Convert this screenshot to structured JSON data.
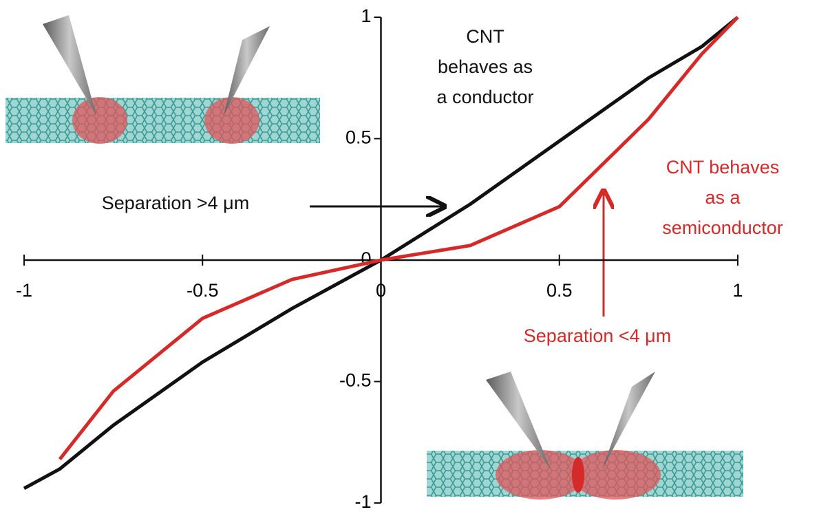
{
  "chart_data": {
    "type": "line",
    "x": [
      -1,
      -0.9,
      -0.75,
      -0.5,
      -0.25,
      0,
      0.25,
      0.5,
      0.75,
      0.9,
      1
    ],
    "series": [
      {
        "color": "#111111",
        "values": [
          -0.94,
          -0.86,
          -0.68,
          -0.42,
          -0.2,
          0,
          0.23,
          0.49,
          0.75,
          0.88,
          1
        ]
      },
      {
        "color": "#d42a2a",
        "values": [
          null,
          -0.82,
          -0.54,
          -0.24,
          -0.08,
          0,
          0.06,
          0.22,
          0.58,
          0.85,
          1
        ]
      }
    ],
    "xlim": [
      -1,
      1
    ],
    "ylim": [
      -1,
      1
    ],
    "xticks": [
      -1,
      -0.5,
      0,
      0.5,
      1
    ],
    "yticks": [
      -1,
      -0.5,
      0,
      0.5,
      1
    ],
    "annotations": [
      {
        "lines": [
          "CNT",
          "behaves as",
          "a conductor"
        ],
        "color": "#111111"
      },
      {
        "lines": [
          "Separation >4 μm"
        ],
        "color": "#111111"
      },
      {
        "lines": [
          "CNT behaves",
          "as a",
          "semiconductor"
        ],
        "color": "#d42a2a"
      },
      {
        "lines": [
          "Separation <4 μm"
        ],
        "color": "#d42a2a"
      }
    ]
  }
}
